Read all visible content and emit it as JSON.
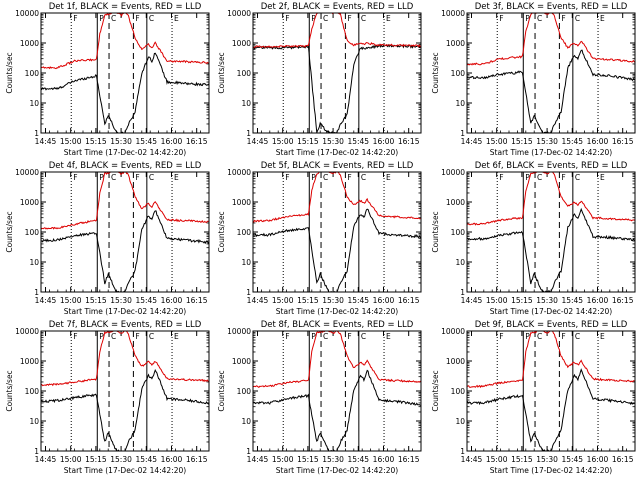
{
  "chart_data": {
    "type": "line",
    "layout": "3x3 grid of panels",
    "scale_y": "log",
    "ylim": [
      1,
      10000
    ],
    "y_ticks": [
      "1",
      "10",
      "100",
      "1000",
      "10000"
    ],
    "x_range_minutes": [
      0,
      100
    ],
    "x_ticks": [
      {
        "label": "14:45",
        "t": 2.67
      },
      {
        "label": "15:00",
        "t": 17.67
      },
      {
        "label": "15:15",
        "t": 32.67
      },
      {
        "label": "15:30",
        "t": 47.67
      },
      {
        "label": "15:45",
        "t": 62.67
      },
      {
        "label": "16:00",
        "t": 77.67
      },
      {
        "label": "16:15",
        "t": 92.67
      }
    ],
    "ylabel": "Counts/sec",
    "xlabel": "Start Time (17-Dec-02 14:42:20)",
    "legend": "Det N, BLACK = Events, RED = LLD",
    "series_names": [
      "Events (black)",
      "LLD (red)"
    ],
    "colors": {
      "events": "#000000",
      "lld": "#dd0000"
    },
    "vertical_lines": [
      {
        "style": "dotted",
        "t": 18.0
      },
      {
        "style": "solid",
        "t": 33.5
      },
      {
        "style": "dashed",
        "t": 40.5
      },
      {
        "style": "dashed",
        "t": 55.0
      },
      {
        "style": "solid",
        "t": 63.0
      },
      {
        "style": "dotted",
        "t": 78.0
      }
    ],
    "panels": [
      {
        "title": "Det 1f, BLACK = Events, RED = LLD",
        "flags": [
          "F",
          "P",
          "C",
          "F",
          "C",
          "E"
        ],
        "events": {
          "t": [
            0,
            10,
            20,
            28,
            33,
            38,
            40,
            45,
            48,
            50,
            52,
            56,
            60,
            64,
            66,
            68,
            75,
            85,
            100
          ],
          "v": [
            30,
            30,
            55,
            70,
            80,
            2,
            4,
            1,
            1,
            1,
            2,
            5,
            100,
            350,
            250,
            500,
            50,
            45,
            40
          ]
        },
        "lld": {
          "t": [
            0,
            10,
            20,
            28,
            33,
            35,
            38,
            40,
            44,
            48,
            50,
            52,
            56,
            60,
            64,
            66,
            68,
            75,
            85,
            100
          ],
          "v": [
            150,
            150,
            250,
            270,
            280,
            2000,
            9000,
            9000,
            11000,
            8500,
            11000,
            8000,
            1500,
            600,
            900,
            700,
            1000,
            250,
            240,
            220
          ]
        }
      },
      {
        "title": "Det 2f, BLACK = Events, RED = LLD",
        "flags": [
          "F",
          "P",
          "C",
          "F",
          "C",
          "E"
        ],
        "events": {
          "t": [
            0,
            10,
            20,
            28,
            33,
            38,
            40,
            45,
            48,
            50,
            52,
            56,
            60,
            64,
            66,
            68,
            75,
            85,
            100
          ],
          "v": [
            700,
            700,
            700,
            700,
            720,
            1,
            2,
            1,
            1,
            1,
            2,
            4,
            200,
            700,
            650,
            700,
            800,
            800,
            750
          ]
        },
        "lld": {
          "t": [
            0,
            10,
            20,
            28,
            33,
            35,
            38,
            40,
            44,
            48,
            50,
            52,
            56,
            60,
            64,
            66,
            68,
            75,
            85,
            100
          ],
          "v": [
            750,
            760,
            770,
            780,
            800,
            3000,
            10000,
            11000,
            11000,
            10000,
            11000,
            9000,
            1200,
            850,
            1000,
            900,
            1000,
            850,
            850,
            800
          ]
        }
      },
      {
        "title": "Det 3f, BLACK = Events, RED = LLD",
        "flags": [
          "F",
          "P",
          "C",
          "F",
          "C",
          "E"
        ],
        "events": {
          "t": [
            0,
            10,
            20,
            28,
            33,
            38,
            40,
            45,
            48,
            50,
            52,
            56,
            60,
            64,
            66,
            68,
            75,
            85,
            100
          ],
          "v": [
            70,
            70,
            90,
            100,
            110,
            2,
            4,
            1,
            1,
            1,
            2,
            5,
            150,
            400,
            300,
            600,
            90,
            80,
            60
          ]
        },
        "lld": {
          "t": [
            0,
            10,
            20,
            28,
            33,
            35,
            38,
            40,
            44,
            48,
            50,
            52,
            56,
            60,
            64,
            66,
            68,
            75,
            85,
            100
          ],
          "v": [
            200,
            200,
            300,
            330,
            350,
            2500,
            9000,
            10000,
            11000,
            9000,
            11000,
            8000,
            1500,
            700,
            1000,
            800,
            1200,
            300,
            280,
            240
          ]
        }
      },
      {
        "title": "Det 4f, BLACK = Events, RED = LLD",
        "flags": [
          "F",
          "P",
          "C",
          "F",
          "C",
          "E"
        ],
        "events": {
          "t": [
            0,
            10,
            20,
            28,
            33,
            38,
            40,
            45,
            48,
            50,
            52,
            56,
            60,
            64,
            66,
            68,
            75,
            85,
            100
          ],
          "v": [
            50,
            55,
            75,
            85,
            90,
            2,
            4,
            1,
            1,
            1,
            2,
            5,
            120,
            350,
            250,
            550,
            60,
            55,
            45
          ]
        },
        "lld": {
          "t": [
            0,
            10,
            20,
            28,
            33,
            35,
            38,
            40,
            44,
            48,
            50,
            52,
            56,
            60,
            64,
            66,
            68,
            75,
            85,
            100
          ],
          "v": [
            130,
            135,
            180,
            220,
            250,
            2000,
            9000,
            9000,
            11000,
            8500,
            11000,
            8000,
            1500,
            600,
            900,
            700,
            1000,
            250,
            240,
            220
          ]
        }
      },
      {
        "title": "Det 5f, BLACK = Events, RED = LLD",
        "flags": [
          "F",
          "P",
          "C",
          "F",
          "C",
          "E"
        ],
        "events": {
          "t": [
            0,
            10,
            20,
            28,
            33,
            38,
            40,
            45,
            48,
            50,
            52,
            56,
            60,
            64,
            66,
            68,
            75,
            85,
            100
          ],
          "v": [
            80,
            80,
            110,
            120,
            130,
            2,
            4,
            1,
            1,
            1,
            2,
            5,
            160,
            400,
            300,
            600,
            90,
            80,
            70
          ]
        },
        "lld": {
          "t": [
            0,
            10,
            20,
            28,
            33,
            35,
            38,
            40,
            44,
            48,
            50,
            52,
            56,
            60,
            64,
            66,
            68,
            75,
            85,
            100
          ],
          "v": [
            230,
            240,
            330,
            360,
            380,
            2500,
            9000,
            10000,
            11000,
            9000,
            11000,
            8000,
            1500,
            800,
            1100,
            900,
            1200,
            350,
            320,
            280
          ]
        }
      },
      {
        "title": "Det 6f, BLACK = Events, RED = LLD",
        "flags": [
          "F",
          "P",
          "C",
          "F",
          "C",
          "E"
        ],
        "events": {
          "t": [
            0,
            10,
            20,
            28,
            33,
            38,
            40,
            45,
            48,
            50,
            52,
            56,
            60,
            64,
            66,
            68,
            75,
            85,
            100
          ],
          "v": [
            60,
            60,
            80,
            90,
            100,
            2,
            4,
            1,
            1,
            1,
            2,
            5,
            140,
            380,
            280,
            560,
            70,
            65,
            55
          ]
        },
        "lld": {
          "t": [
            0,
            10,
            20,
            28,
            33,
            35,
            38,
            40,
            44,
            48,
            50,
            52,
            56,
            60,
            64,
            66,
            68,
            75,
            85,
            100
          ],
          "v": [
            180,
            185,
            250,
            280,
            300,
            2200,
            9000,
            9500,
            11000,
            9000,
            11000,
            8000,
            1500,
            700,
            1000,
            800,
            1100,
            300,
            280,
            250
          ]
        }
      },
      {
        "title": "Det 7f, BLACK = Events, RED = LLD",
        "flags": [
          "F",
          "P",
          "C",
          "F",
          "C",
          "E"
        ],
        "events": {
          "t": [
            0,
            10,
            20,
            28,
            33,
            38,
            40,
            45,
            48,
            50,
            52,
            56,
            60,
            64,
            66,
            68,
            75,
            85,
            100
          ],
          "v": [
            45,
            48,
            60,
            70,
            75,
            2,
            4,
            1,
            1,
            1,
            2,
            5,
            120,
            330,
            250,
            520,
            55,
            50,
            40
          ]
        },
        "lld": {
          "t": [
            0,
            10,
            20,
            28,
            33,
            35,
            38,
            40,
            44,
            48,
            50,
            52,
            56,
            60,
            64,
            66,
            68,
            75,
            85,
            100
          ],
          "v": [
            160,
            165,
            200,
            230,
            250,
            2000,
            9000,
            9000,
            11000,
            8500,
            11000,
            8000,
            1500,
            650,
            950,
            750,
            1000,
            260,
            240,
            220
          ]
        }
      },
      {
        "title": "Det 8f, BLACK = Events, RED = LLD",
        "flags": [
          "F",
          "P",
          "C",
          "F",
          "C",
          "E"
        ],
        "events": {
          "t": [
            0,
            10,
            20,
            28,
            33,
            38,
            40,
            45,
            48,
            50,
            52,
            56,
            60,
            64,
            66,
            68,
            75,
            85,
            100
          ],
          "v": [
            40,
            40,
            55,
            65,
            70,
            2,
            4,
            1,
            1,
            1,
            2,
            5,
            110,
            320,
            240,
            500,
            50,
            45,
            35
          ]
        },
        "lld": {
          "t": [
            0,
            10,
            20,
            28,
            33,
            35,
            38,
            40,
            44,
            48,
            50,
            52,
            56,
            60,
            64,
            66,
            68,
            75,
            85,
            100
          ],
          "v": [
            140,
            145,
            190,
            210,
            230,
            2000,
            9000,
            9000,
            11000,
            8500,
            11000,
            8000,
            1500,
            600,
            900,
            700,
            1000,
            240,
            220,
            200
          ]
        }
      },
      {
        "title": "Det 9f, BLACK = Events, RED = LLD",
        "flags": [
          "F",
          "P",
          "C",
          "F",
          "C",
          "E"
        ],
        "events": {
          "t": [
            0,
            10,
            20,
            28,
            33,
            38,
            40,
            45,
            48,
            50,
            52,
            56,
            60,
            64,
            66,
            68,
            75,
            85,
            100
          ],
          "v": [
            40,
            40,
            55,
            65,
            70,
            2,
            4,
            1,
            1,
            1,
            2,
            5,
            110,
            330,
            250,
            520,
            55,
            48,
            38
          ]
        },
        "lld": {
          "t": [
            0,
            10,
            20,
            28,
            33,
            35,
            38,
            40,
            44,
            48,
            50,
            52,
            56,
            60,
            64,
            66,
            68,
            75,
            85,
            100
          ],
          "v": [
            140,
            145,
            190,
            215,
            235,
            2000,
            9000,
            9000,
            11000,
            8500,
            11000,
            8000,
            1500,
            620,
            920,
            720,
            1000,
            250,
            230,
            210
          ]
        }
      }
    ]
  }
}
